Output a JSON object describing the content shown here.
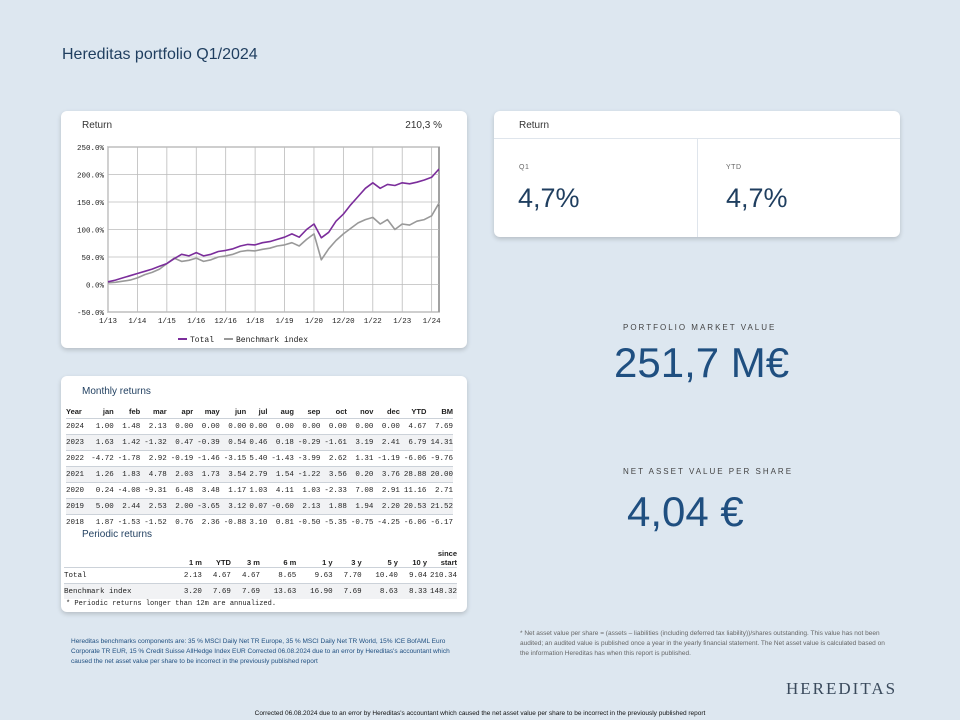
{
  "page": {
    "title": "Hereditas portfolio Q1/2024"
  },
  "return_chart": {
    "label": "Return",
    "total_value": "210,3 %",
    "legend": [
      "Total",
      "Benchmark index"
    ]
  },
  "chart_data": {
    "type": "line",
    "x_tick_labels": [
      "1/13",
      "1/14",
      "1/15",
      "1/16",
      "12/16",
      "1/18",
      "1/19",
      "1/20",
      "12/20",
      "1/22",
      "1/23",
      "1/24"
    ],
    "y_tick_labels": [
      "250.0%",
      "200.0%",
      "150.0%",
      "100.0%",
      "50.0%",
      "0.0%",
      "-50.0%"
    ],
    "ylim": [
      -50,
      250
    ],
    "x": [
      0,
      0.25,
      0.5,
      0.75,
      1,
      1.25,
      1.5,
      1.75,
      2,
      2.25,
      2.5,
      2.75,
      3,
      3.25,
      3.5,
      3.75,
      4,
      4.25,
      4.5,
      4.75,
      5,
      5.25,
      5.5,
      5.75,
      6,
      6.25,
      6.5,
      6.75,
      7,
      7.25,
      7.5,
      7.75,
      8,
      8.25,
      8.5,
      8.75,
      9,
      9.25,
      9.5,
      9.75,
      10,
      10.25,
      10.5,
      10.75,
      11,
      11.25
    ],
    "series": [
      {
        "name": "Total",
        "color": "#7b2d9b",
        "values": [
          5,
          8,
          12,
          16,
          20,
          24,
          28,
          33,
          38,
          47,
          55,
          52,
          58,
          52,
          55,
          60,
          62,
          65,
          70,
          73,
          72,
          76,
          78,
          82,
          86,
          92,
          86,
          100,
          110,
          85,
          95,
          115,
          128,
          145,
          160,
          175,
          185,
          175,
          182,
          180,
          185,
          183,
          186,
          190,
          195,
          210
        ]
      },
      {
        "name": "Benchmark index",
        "color": "#999999",
        "values": [
          3,
          4,
          6,
          8,
          12,
          18,
          22,
          28,
          38,
          48,
          42,
          44,
          48,
          42,
          45,
          50,
          52,
          55,
          60,
          62,
          61,
          64,
          66,
          70,
          72,
          76,
          70,
          82,
          92,
          45,
          65,
          80,
          92,
          102,
          112,
          118,
          122,
          110,
          118,
          100,
          110,
          108,
          115,
          118,
          125,
          148
        ]
      }
    ]
  },
  "return_kpis": {
    "label": "Return",
    "q1_label": "Q1",
    "q1_value": "4,7%",
    "ytd_label": "YTD",
    "ytd_value": "4,7%"
  },
  "market_value": {
    "label": "PORTFOLIO MARKET VALUE",
    "value": "251,7 M€"
  },
  "nav_per_share": {
    "label": "NET ASSET VALUE PER SHARE",
    "value": "4,04 €"
  },
  "monthly_returns": {
    "label": "Monthly returns",
    "headers": [
      "Year",
      "jan",
      "feb",
      "mar",
      "apr",
      "may",
      "jun",
      "jul",
      "aug",
      "sep",
      "oct",
      "nov",
      "dec",
      "YTD",
      "BM"
    ],
    "rows": [
      [
        "2024",
        "1.00",
        "1.48",
        "2.13",
        "0.00",
        "0.00",
        "0.00",
        "0.00",
        "0.00",
        "0.00",
        "0.00",
        "0.00",
        "0.00",
        "4.67",
        "7.69"
      ],
      [
        "2023",
        "1.63",
        "1.42",
        "-1.32",
        "0.47",
        "-0.39",
        "0.54",
        "0.46",
        "0.18",
        "-0.29",
        "-1.61",
        "3.19",
        "2.41",
        "6.79",
        "14.31"
      ],
      [
        "2022",
        "-4.72",
        "-1.78",
        "2.92",
        "-0.19",
        "-1.46",
        "-3.15",
        "5.40",
        "-1.43",
        "-3.99",
        "2.62",
        "1.31",
        "-1.19",
        "-6.06",
        "-9.76"
      ],
      [
        "2021",
        "1.26",
        "1.83",
        "4.78",
        "2.03",
        "1.73",
        "3.54",
        "2.79",
        "1.54",
        "-1.22",
        "3.56",
        "0.20",
        "3.76",
        "28.88",
        "20.00"
      ],
      [
        "2020",
        "0.24",
        "-4.08",
        "-9.31",
        "6.48",
        "3.48",
        "1.17",
        "1.03",
        "4.11",
        "1.03",
        "-2.33",
        "7.08",
        "2.91",
        "11.16",
        "2.71"
      ],
      [
        "2019",
        "5.00",
        "2.44",
        "2.53",
        "2.00",
        "-3.65",
        "3.12",
        "0.07",
        "-0.60",
        "2.13",
        "1.88",
        "1.94",
        "2.20",
        "20.53",
        "21.52"
      ],
      [
        "2018",
        "1.87",
        "-1.53",
        "-1.52",
        "0.76",
        "2.36",
        "-0.88",
        "3.10",
        "0.81",
        "-0.50",
        "-5.35",
        "-0.75",
        "-4.25",
        "-6.06",
        "-6.17"
      ]
    ]
  },
  "periodic_returns": {
    "label": "Periodic returns",
    "headers": [
      "",
      "1 m",
      "YTD",
      "3 m",
      "6 m",
      "1 y",
      "3 y",
      "5 y",
      "10 y",
      "since start"
    ],
    "rows": [
      [
        "Total",
        "2.13",
        "4.67",
        "4.67",
        "8.65",
        "9.63",
        "7.70",
        "10.40",
        "9.04",
        "210.34"
      ],
      [
        "Benchmark index",
        "3.20",
        "7.69",
        "7.69",
        "13.63",
        "16.90",
        "7.69",
        "8.63",
        "8.33",
        "148.32"
      ]
    ],
    "note": "* Periodic returns longer than 12m are annualized."
  },
  "footnotes": {
    "benchmark": "Hereditas benchmarks components are: 35 % MSCI Daily Net TR Europe, 35 % MSCI Daily Net TR World, 15% ICE BofAML Euro Corporate TR EUR, 15 % Credit Suisse AllHedge Index EUR Corrected 06.08.2024 due to an error by Hereditas's accountant which caused the net asset value per share to be incorrect in the previously published report",
    "nav": "* Net asset value per share = (assets – liabilities (including deferred tax liability))/shares outstanding. This value has not been audited; an audited value is published once a year in the yearly financial statement. The Net asset value is calculated based on the information Hereditas has when this report is published.",
    "correction": "Corrected 06.08.2024 due to an error by Hereditas's accountant which caused the net asset value per share to be incorrect in the previously published report"
  },
  "logo_text": "HEREDITAS"
}
